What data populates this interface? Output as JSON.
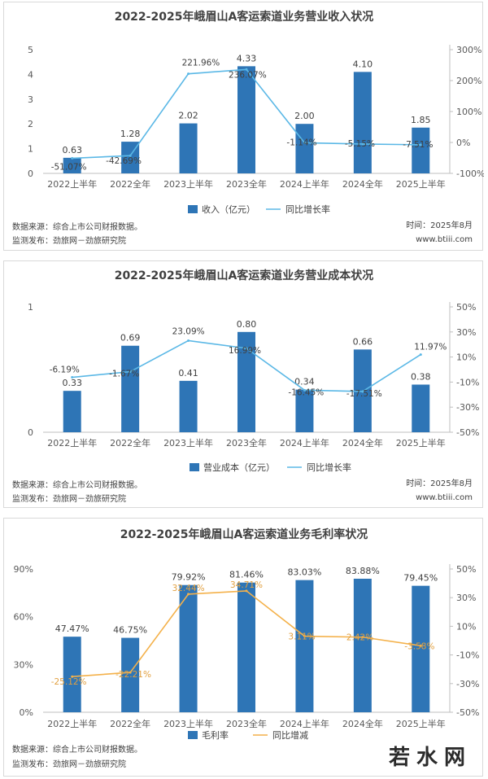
{
  "charts": [
    {
      "title": "2022-2025年峨眉山A客运索道业务营业收入状况",
      "legend": {
        "bar": "收入（亿元）",
        "line": "同比增长率"
      },
      "footer": {
        "source": "数据来源：综合上市公司财报数据。",
        "publisher": "监测发布：劲旅网－劲旅研究院",
        "time": "时间：2025年8月",
        "site": "www.btiii.com"
      },
      "bar_labels": [
        "0.63",
        "1.28",
        "2.02",
        "4.33",
        "2.00",
        "4.10",
        "1.85"
      ],
      "line_labels": [
        "-51.07%",
        "-42.69%",
        "221.96%",
        "236.07%",
        "-1.14%",
        "-5.15%",
        "-7.51%"
      ],
      "left_ticks": [
        "0",
        "1",
        "2",
        "3",
        "4",
        "5"
      ],
      "right_ticks": [
        "-100%",
        "0%",
        "100%",
        "200%",
        "300%"
      ]
    },
    {
      "title": "2022-2025年峨眉山A客运索道业务营业成本状况",
      "legend": {
        "bar": "营业成本（亿元）",
        "line": "同比增长率"
      },
      "footer": {
        "source": "数据来源：综合上市公司财报数据。",
        "publisher": "监测发布：劲旅网－劲旅研究院",
        "time": "时间：2025年8月",
        "site": "www.btiii.com"
      },
      "bar_labels": [
        "0.33",
        "0.69",
        "0.41",
        "0.80",
        "0.34",
        "0.66",
        "0.38"
      ],
      "line_labels": [
        "-6.19%",
        "-1.67%",
        "23.09%",
        "16.99%",
        "-16.45%",
        "-17.51%",
        "11.97%"
      ],
      "left_ticks": [
        "0",
        "1"
      ],
      "right_ticks": [
        "-50%",
        "-30%",
        "-10%",
        "10%",
        "30%",
        "50%"
      ]
    },
    {
      "title": "2022-2025年峨眉山A客运索道业务毛利率状况",
      "legend": {
        "bar": "毛利率",
        "line": "同比增减"
      },
      "footer": {
        "source": "数据来源：综合上市公司财报数据。",
        "publisher": "监测发布：劲旅网－劲旅研究院",
        "time": "",
        "site": ""
      },
      "bar_labels": [
        "47.47%",
        "46.75%",
        "79.92%",
        "81.46%",
        "83.03%",
        "83.88%",
        "79.45%"
      ],
      "line_labels": [
        "-25.12%",
        "-22.21%",
        "32.44%",
        "34.71%",
        "3.11%",
        "2.42%",
        "-3.58%"
      ],
      "left_ticks": [
        "0%",
        "30%",
        "60%",
        "90%"
      ],
      "right_ticks": [
        "-50%",
        "-30%",
        "-10%",
        "10%",
        "30%",
        "50%"
      ]
    }
  ],
  "watermark": "若水网",
  "chart_data": [
    {
      "type": "bar",
      "title": "2022-2025年峨眉山A客运索道业务营业收入状况",
      "categories": [
        "2022上半年",
        "2022全年",
        "2023上半年",
        "2023全年",
        "2024上半年",
        "2024全年",
        "2025上半年"
      ],
      "series": [
        {
          "name": "收入（亿元）",
          "type": "bar",
          "axis": "left",
          "values": [
            0.63,
            1.28,
            2.02,
            4.33,
            2.0,
            4.1,
            1.85
          ]
        },
        {
          "name": "同比增长率",
          "type": "line",
          "axis": "right",
          "values": [
            -51.07,
            -42.69,
            221.96,
            236.07,
            -1.14,
            -5.15,
            -7.51
          ]
        }
      ],
      "ylim": [
        0,
        5
      ],
      "y2lim": [
        -100,
        300
      ],
      "colors": {
        "bar": "#2e75b6",
        "line": "#5bb8e6"
      },
      "legend_position": "bottom"
    },
    {
      "type": "bar",
      "title": "2022-2025年峨眉山A客运索道业务营业成本状况",
      "categories": [
        "2022上半年",
        "2022全年",
        "2023上半年",
        "2023全年",
        "2024上半年",
        "2024全年",
        "2025上半年"
      ],
      "series": [
        {
          "name": "营业成本（亿元）",
          "type": "bar",
          "axis": "left",
          "values": [
            0.33,
            0.69,
            0.41,
            0.8,
            0.34,
            0.66,
            0.38
          ]
        },
        {
          "name": "同比增长率",
          "type": "line",
          "axis": "right",
          "values": [
            -6.19,
            -1.67,
            23.09,
            16.99,
            -16.45,
            -17.51,
            11.97
          ]
        }
      ],
      "ylim": [
        0,
        1
      ],
      "y2lim": [
        -50,
        50
      ],
      "colors": {
        "bar": "#2e75b6",
        "line": "#5bb8e6"
      },
      "legend_position": "bottom"
    },
    {
      "type": "bar",
      "title": "2022-2025年峨眉山A客运索道业务毛利率状况",
      "categories": [
        "2022上半年",
        "2022全年",
        "2023上半年",
        "2023全年",
        "2024上半年",
        "2024全年",
        "2025上半年"
      ],
      "series": [
        {
          "name": "毛利率",
          "type": "bar",
          "axis": "left",
          "values": [
            47.47,
            46.75,
            79.92,
            81.46,
            83.03,
            83.88,
            79.45
          ]
        },
        {
          "name": "同比增减",
          "type": "line",
          "axis": "right",
          "values": [
            -25.12,
            -22.21,
            32.44,
            34.71,
            3.11,
            2.42,
            -3.58
          ]
        }
      ],
      "ylim": [
        0,
        90
      ],
      "y2lim": [
        -50,
        50
      ],
      "colors": {
        "bar": "#2e75b6",
        "line": "#f4b14a"
      },
      "legend_position": "bottom"
    }
  ]
}
